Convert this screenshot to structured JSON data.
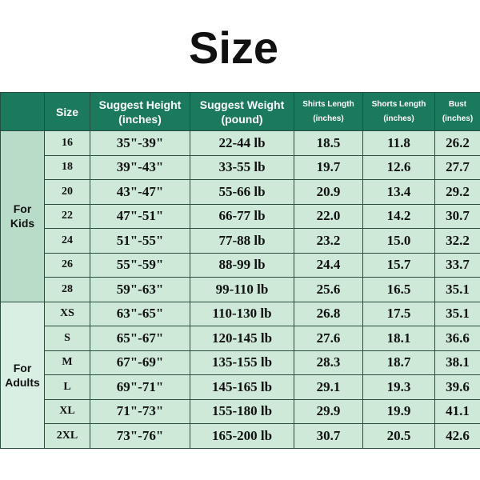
{
  "title": "Size",
  "table": {
    "header": [
      [
        "Size"
      ],
      [
        "Suggest Height",
        "(inches)"
      ],
      [
        "Suggest Weight",
        "(pound)"
      ],
      [
        "Shirts Length",
        "(inches)"
      ],
      [
        "Shorts Length",
        "(inches)"
      ],
      [
        "Bust",
        "(inches)"
      ]
    ],
    "groups": [
      {
        "label": [
          "For",
          "Kids"
        ],
        "rows": [
          [
            "16",
            "35\"-39\"",
            "22-44 lb",
            "18.5",
            "11.8",
            "26.2"
          ],
          [
            "18",
            "39\"-43\"",
            "33-55 lb",
            "19.7",
            "12.6",
            "27.7"
          ],
          [
            "20",
            "43\"-47\"",
            "55-66 lb",
            "20.9",
            "13.4",
            "29.2"
          ],
          [
            "22",
            "47\"-51\"",
            "66-77 lb",
            "22.0",
            "14.2",
            "30.7"
          ],
          [
            "24",
            "51\"-55\"",
            "77-88 lb",
            "23.2",
            "15.0",
            "32.2"
          ],
          [
            "26",
            "55\"-59\"",
            "88-99 lb",
            "24.4",
            "15.7",
            "33.7"
          ],
          [
            "28",
            "59\"-63\"",
            "99-110 lb",
            "25.6",
            "16.5",
            "35.1"
          ]
        ]
      },
      {
        "label": [
          "For",
          "Adults"
        ],
        "rows": [
          [
            "XS",
            "63\"-65\"",
            "110-130 lb",
            "26.8",
            "17.5",
            "35.1"
          ],
          [
            "S",
            "65\"-67\"",
            "120-145 lb",
            "27.6",
            "18.1",
            "36.6"
          ],
          [
            "M",
            "67\"-69\"",
            "135-155 lb",
            "28.3",
            "18.7",
            "38.1"
          ],
          [
            "L",
            "69\"-71\"",
            "145-165 lb",
            "29.1",
            "19.3",
            "39.6"
          ],
          [
            "XL",
            "71\"-73\"",
            "155-180 lb",
            "29.9",
            "19.9",
            "41.1"
          ],
          [
            "2XL",
            "73\"-76\"",
            "165-200 lb",
            "30.7",
            "20.5",
            "42.6"
          ]
        ]
      }
    ]
  }
}
